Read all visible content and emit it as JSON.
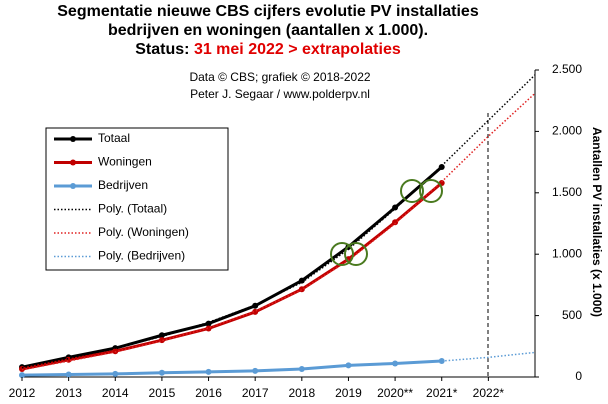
{
  "chart_data": {
    "type": "line",
    "title": [
      "Segmentatie nieuwe CBS cijfers evolutie PV installaties",
      "bedrijven en woningen (aantallen x 1.000)."
    ],
    "status_label": "Status:",
    "status": "31 mei 2022 > extrapolaties",
    "subtitle": [
      "Data © CBS; grafiek © 2018-2022",
      "Peter J. Segaar / www.polderpv.nl"
    ],
    "y_axis_label": "Aantallen PV installaties (x 1.000)",
    "xlim": [
      2012,
      2023
    ],
    "xticks": [
      2012,
      2013,
      2014,
      2015,
      2016,
      2017,
      2018,
      2019,
      {
        "value": 2020,
        "label": "2020**"
      },
      {
        "value": 2021,
        "label": "2021*"
      },
      {
        "value": 2022,
        "label": "2022*"
      }
    ],
    "ylim": [
      0,
      2500
    ],
    "yticks": [
      0,
      500,
      {
        "value": 1000,
        "label": "1.000"
      },
      {
        "value": 1500,
        "label": "1.500"
      },
      {
        "value": 2000,
        "label": "2.000"
      },
      {
        "value": 2500,
        "label": "2.500"
      }
    ],
    "series": [
      {
        "name": "Totaal",
        "color": "#000000",
        "style": "solid",
        "x": [
          2012,
          2013,
          2014,
          2015,
          2016,
          2017,
          2018,
          2019,
          2020,
          2021
        ],
        "values": [
          80,
          160,
          235,
          340,
          435,
          580,
          785,
          1060,
          1380,
          1710
        ]
      },
      {
        "name": "Woningen",
        "color": "#c00000",
        "style": "solid",
        "x": [
          2012,
          2013,
          2014,
          2015,
          2016,
          2017,
          2018,
          2019,
          2020,
          2021
        ],
        "values": [
          65,
          140,
          210,
          300,
          395,
          530,
          715,
          960,
          1260,
          1580
        ]
      },
      {
        "name": "Bedrijven",
        "color": "#5b9bd5",
        "style": "solid",
        "x": [
          2012,
          2013,
          2014,
          2015,
          2016,
          2017,
          2018,
          2019,
          2020,
          2021
        ],
        "values": [
          15,
          20,
          25,
          35,
          42,
          50,
          65,
          95,
          110,
          130
        ]
      },
      {
        "name": "Poly. (Totaal)",
        "color": "#000000",
        "style": "dotted",
        "x": [
          2012,
          2013,
          2014,
          2015,
          2016,
          2017,
          2018,
          2019,
          2020,
          2021,
          2022,
          2023
        ],
        "values": [
          75,
          150,
          235,
          330,
          445,
          585,
          770,
          1040,
          1370,
          1720,
          2090,
          2460
        ]
      },
      {
        "name": "Poly. (Woningen)",
        "color": "#e02020",
        "style": "dotted",
        "x": [
          2012,
          2013,
          2014,
          2015,
          2016,
          2017,
          2018,
          2019,
          2020,
          2021,
          2022,
          2023
        ],
        "values": [
          60,
          130,
          205,
          295,
          400,
          535,
          710,
          950,
          1250,
          1590,
          1960,
          2310
        ]
      },
      {
        "name": "Poly. (Bedrijven)",
        "color": "#5b9bd5",
        "style": "dotted",
        "x": [
          2012,
          2013,
          2014,
          2015,
          2016,
          2017,
          2018,
          2019,
          2020,
          2021,
          2022,
          2023
        ],
        "values": [
          15,
          20,
          27,
          35,
          42,
          52,
          65,
          90,
          110,
          130,
          160,
          200
        ]
      }
    ]
  }
}
